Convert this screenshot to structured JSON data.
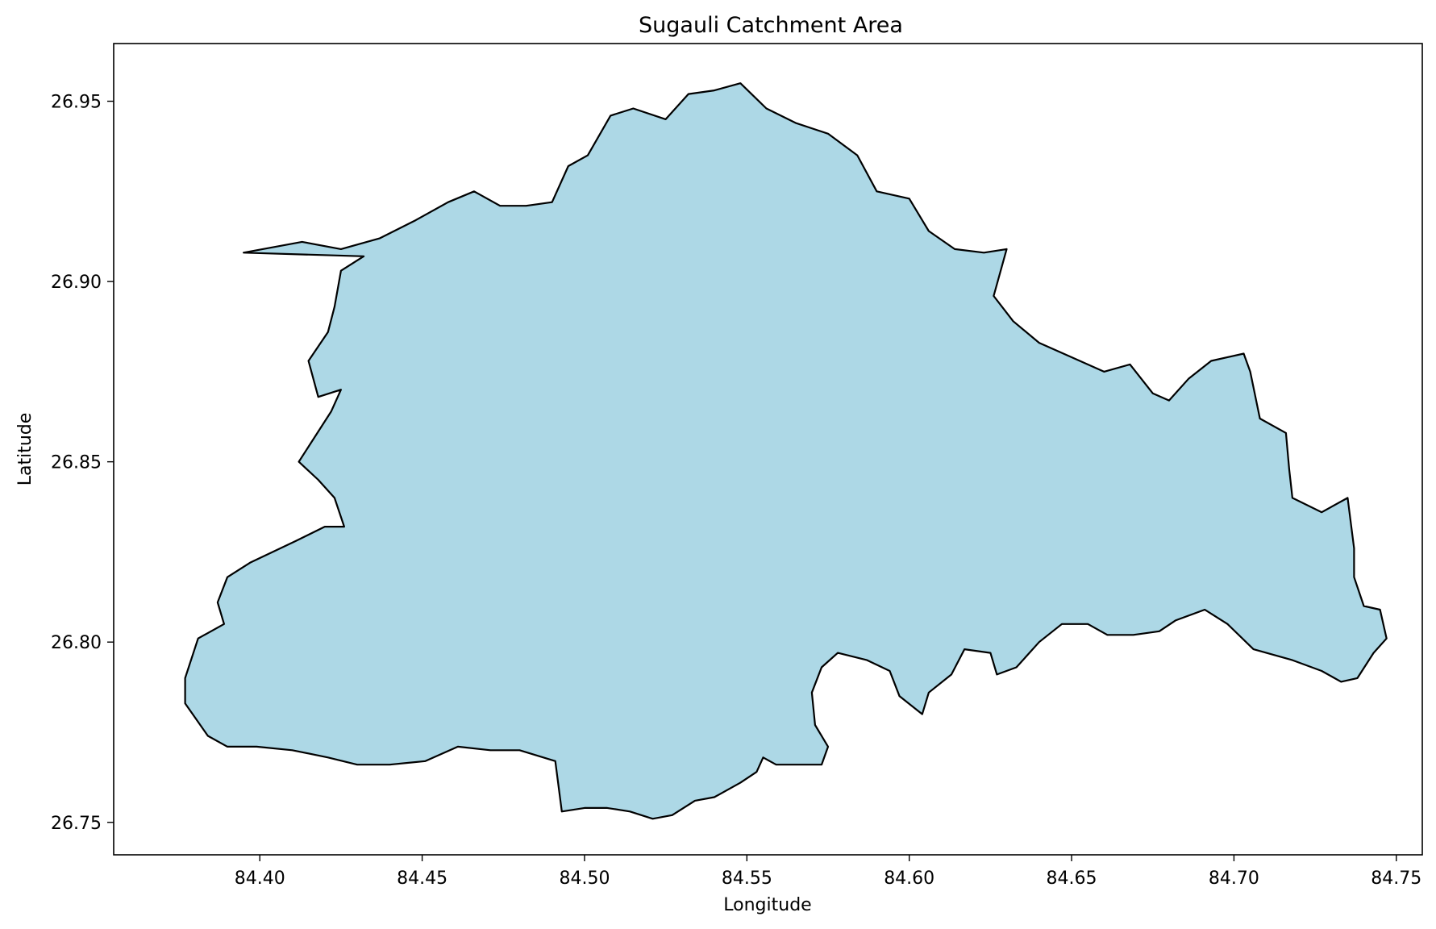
{
  "chart_data": {
    "type": "map",
    "title": "Sugauli Catchment Area",
    "xlabel": "Longitude",
    "ylabel": "Latitude",
    "xlim": [
      84.355,
      84.758
    ],
    "ylim": [
      26.741,
      26.966
    ],
    "xticks": [
      84.4,
      84.45,
      84.5,
      84.55,
      84.6,
      84.65,
      84.7,
      84.75
    ],
    "xtick_labels": [
      "84.40",
      "84.45",
      "84.50",
      "84.55",
      "84.60",
      "84.65",
      "84.70",
      "84.75"
    ],
    "yticks": [
      26.75,
      26.8,
      26.85,
      26.9,
      26.95
    ],
    "ytick_labels": [
      "26.75",
      "26.80",
      "26.85",
      "26.90",
      "26.95"
    ],
    "grid": false,
    "region": {
      "fill": "#add8e6",
      "edge": "#000000",
      "boundary": [
        [
          84.395,
          26.908
        ],
        [
          84.413,
          26.911
        ],
        [
          84.425,
          26.909
        ],
        [
          84.437,
          26.912
        ],
        [
          84.448,
          26.917
        ],
        [
          84.458,
          26.922
        ],
        [
          84.466,
          26.925
        ],
        [
          84.474,
          26.921
        ],
        [
          84.482,
          26.921
        ],
        [
          84.49,
          26.922
        ],
        [
          84.495,
          26.932
        ],
        [
          84.501,
          26.935
        ],
        [
          84.508,
          26.946
        ],
        [
          84.515,
          26.948
        ],
        [
          84.525,
          26.945
        ],
        [
          84.532,
          26.952
        ],
        [
          84.54,
          26.953
        ],
        [
          84.548,
          26.955
        ],
        [
          84.556,
          26.948
        ],
        [
          84.565,
          26.944
        ],
        [
          84.575,
          26.941
        ],
        [
          84.584,
          26.935
        ],
        [
          84.59,
          26.925
        ],
        [
          84.6,
          26.923
        ],
        [
          84.606,
          26.914
        ],
        [
          84.614,
          26.909
        ],
        [
          84.623,
          26.908
        ],
        [
          84.63,
          26.909
        ],
        [
          84.626,
          26.896
        ],
        [
          84.632,
          26.889
        ],
        [
          84.64,
          26.883
        ],
        [
          84.65,
          26.879
        ],
        [
          84.66,
          26.875
        ],
        [
          84.668,
          26.877
        ],
        [
          84.675,
          26.869
        ],
        [
          84.68,
          26.867
        ],
        [
          84.686,
          26.873
        ],
        [
          84.693,
          26.878
        ],
        [
          84.703,
          26.88
        ],
        [
          84.705,
          26.875
        ],
        [
          84.708,
          26.862
        ],
        [
          84.716,
          26.858
        ],
        [
          84.717,
          26.848
        ],
        [
          84.718,
          26.84
        ],
        [
          84.727,
          26.836
        ],
        [
          84.735,
          26.84
        ],
        [
          84.737,
          26.826
        ],
        [
          84.737,
          26.818
        ],
        [
          84.74,
          26.81
        ],
        [
          84.745,
          26.809
        ],
        [
          84.747,
          26.801
        ],
        [
          84.743,
          26.797
        ],
        [
          84.738,
          26.79
        ],
        [
          84.733,
          26.789
        ],
        [
          84.727,
          26.792
        ],
        [
          84.718,
          26.795
        ],
        [
          84.706,
          26.798
        ],
        [
          84.698,
          26.805
        ],
        [
          84.691,
          26.809
        ],
        [
          84.682,
          26.806
        ],
        [
          84.677,
          26.803
        ],
        [
          84.669,
          26.802
        ],
        [
          84.661,
          26.802
        ],
        [
          84.655,
          26.805
        ],
        [
          84.647,
          26.805
        ],
        [
          84.64,
          26.8
        ],
        [
          84.633,
          26.793
        ],
        [
          84.627,
          26.791
        ],
        [
          84.625,
          26.797
        ],
        [
          84.617,
          26.798
        ],
        [
          84.613,
          26.791
        ],
        [
          84.606,
          26.786
        ],
        [
          84.604,
          26.78
        ],
        [
          84.597,
          26.785
        ],
        [
          84.594,
          26.792
        ],
        [
          84.587,
          26.795
        ],
        [
          84.578,
          26.797
        ],
        [
          84.573,
          26.793
        ],
        [
          84.57,
          26.786
        ],
        [
          84.571,
          26.777
        ],
        [
          84.575,
          26.771
        ],
        [
          84.573,
          26.766
        ],
        [
          84.566,
          26.766
        ],
        [
          84.559,
          26.766
        ],
        [
          84.555,
          26.768
        ],
        [
          84.553,
          26.764
        ],
        [
          84.548,
          26.761
        ],
        [
          84.54,
          26.757
        ],
        [
          84.534,
          26.756
        ],
        [
          84.527,
          26.752
        ],
        [
          84.521,
          26.751
        ],
        [
          84.514,
          26.753
        ],
        [
          84.507,
          26.754
        ],
        [
          84.5,
          26.754
        ],
        [
          84.493,
          26.753
        ],
        [
          84.491,
          26.767
        ],
        [
          84.48,
          26.77
        ],
        [
          84.471,
          26.77
        ],
        [
          84.461,
          26.771
        ],
        [
          84.451,
          26.767
        ],
        [
          84.44,
          26.766
        ],
        [
          84.43,
          26.766
        ],
        [
          84.421,
          26.768
        ],
        [
          84.41,
          26.77
        ],
        [
          84.399,
          26.771
        ],
        [
          84.39,
          26.771
        ],
        [
          84.384,
          26.774
        ],
        [
          84.377,
          26.783
        ],
        [
          84.377,
          26.79
        ],
        [
          84.381,
          26.801
        ],
        [
          84.389,
          26.805
        ],
        [
          84.387,
          26.811
        ],
        [
          84.39,
          26.818
        ],
        [
          84.397,
          26.822
        ],
        [
          84.404,
          26.825
        ],
        [
          84.411,
          26.828
        ],
        [
          84.42,
          26.832
        ],
        [
          84.426,
          26.832
        ],
        [
          84.423,
          26.84
        ],
        [
          84.418,
          26.845
        ],
        [
          84.412,
          26.85
        ],
        [
          84.417,
          26.857
        ],
        [
          84.422,
          26.864
        ],
        [
          84.425,
          26.87
        ],
        [
          84.418,
          26.868
        ],
        [
          84.415,
          26.878
        ],
        [
          84.421,
          26.886
        ],
        [
          84.423,
          26.893
        ],
        [
          84.425,
          26.903
        ],
        [
          84.432,
          26.907
        ],
        [
          84.395,
          26.908
        ]
      ]
    }
  }
}
